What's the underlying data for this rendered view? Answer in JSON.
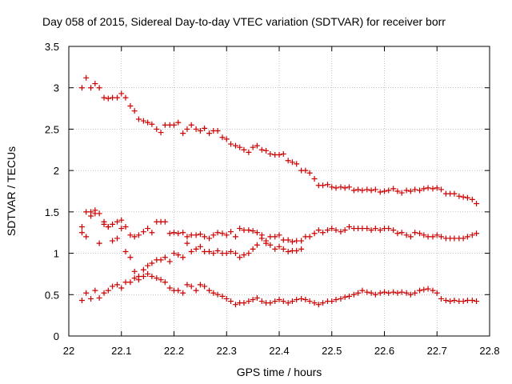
{
  "chart_data": {
    "type": "scatter",
    "title": "Day 058 of 2015, Sidereal Day-to-day VTEC variation (SDTVAR) for receiver borr",
    "xlabel": "GPS time / hours",
    "ylabel": "SDTVAR / TECUs",
    "xlim": [
      22,
      22.8
    ],
    "ylim": [
      0,
      3.5
    ],
    "x_ticks": [
      "22",
      "22.1",
      "22.2",
      "22.3",
      "22.4",
      "22.5",
      "22.6",
      "22.7",
      "22.8"
    ],
    "y_ticks": [
      "0",
      "0.5",
      "1",
      "1.5",
      "2",
      "2.5",
      "3",
      "3.5"
    ],
    "grid": true,
    "marker": "+",
    "series": [
      {
        "name": "top",
        "x": [
          22.025,
          22.033,
          22.042,
          22.05,
          22.058,
          22.067,
          22.075,
          22.083,
          22.092,
          22.1,
          22.108,
          22.117,
          22.125,
          22.133,
          22.142,
          22.15,
          22.158,
          22.167,
          22.175,
          22.183,
          22.192,
          22.2,
          22.208,
          22.217,
          22.225,
          22.233,
          22.242,
          22.25,
          22.258,
          22.267,
          22.275,
          22.283,
          22.292,
          22.3,
          22.308,
          22.317,
          22.325,
          22.333,
          22.342,
          22.35,
          22.358,
          22.367,
          22.375,
          22.383,
          22.392,
          22.4,
          22.408,
          22.417,
          22.425,
          22.433,
          22.442,
          22.45,
          22.458,
          22.467,
          22.475,
          22.483,
          22.492,
          22.5,
          22.508,
          22.517,
          22.525,
          22.533,
          22.542,
          22.55,
          22.558,
          22.567,
          22.575,
          22.583,
          22.592,
          22.6,
          22.608,
          22.617,
          22.625,
          22.633,
          22.642,
          22.65,
          22.658,
          22.667,
          22.675,
          22.683,
          22.692,
          22.7,
          22.708,
          22.717,
          22.725,
          22.733,
          22.742,
          22.75,
          22.758,
          22.767,
          22.775
        ],
        "y": [
          3.0,
          3.12,
          3.0,
          3.05,
          3.0,
          2.88,
          2.87,
          2.88,
          2.88,
          2.93,
          2.88,
          2.78,
          2.72,
          2.62,
          2.6,
          2.58,
          2.56,
          2.5,
          2.46,
          2.55,
          2.55,
          2.55,
          2.58,
          2.45,
          2.5,
          2.55,
          2.5,
          2.48,
          2.51,
          2.45,
          2.48,
          2.48,
          2.4,
          2.38,
          2.32,
          2.3,
          2.28,
          2.25,
          2.22,
          2.28,
          2.3,
          2.25,
          2.24,
          2.2,
          2.19,
          2.19,
          2.2,
          2.12,
          2.1,
          2.08,
          2.0,
          2.0,
          1.97,
          1.9,
          1.82,
          1.82,
          1.83,
          1.8,
          1.79,
          1.8,
          1.79,
          1.8,
          1.76,
          1.77,
          1.76,
          1.77,
          1.76,
          1.77,
          1.74,
          1.75,
          1.76,
          1.78,
          1.75,
          1.73,
          1.76,
          1.75,
          1.77,
          1.76,
          1.78,
          1.79,
          1.78,
          1.79,
          1.77,
          1.72,
          1.72,
          1.72,
          1.69,
          1.68,
          1.67,
          1.65,
          1.6
        ]
      },
      {
        "name": "upper-middle",
        "x": [
          22.025,
          22.033,
          22.042,
          22.05,
          22.058,
          22.067,
          22.075,
          22.083,
          22.092,
          22.1,
          22.108,
          22.117,
          22.125,
          22.133,
          22.142,
          22.15,
          22.158,
          22.167,
          22.175,
          22.183,
          22.192,
          22.2,
          22.208,
          22.217,
          22.225,
          22.233,
          22.242,
          22.25,
          22.258,
          22.267,
          22.275,
          22.283,
          22.292,
          22.3,
          22.308,
          22.317,
          22.325,
          22.333,
          22.342,
          22.35,
          22.358,
          22.367,
          22.375,
          22.383,
          22.392,
          22.4,
          22.408,
          22.417,
          22.425,
          22.433,
          22.442,
          22.45,
          22.458,
          22.467,
          22.475,
          22.483,
          22.492,
          22.5,
          22.508,
          22.517,
          22.525,
          22.533,
          22.542,
          22.55,
          22.558,
          22.567,
          22.575,
          22.583,
          22.592,
          22.6,
          22.608,
          22.617,
          22.625,
          22.633,
          22.642,
          22.65,
          22.658,
          22.667,
          22.675,
          22.683,
          22.692,
          22.7,
          22.708,
          22.717,
          22.725,
          22.733,
          22.742,
          22.75,
          22.758,
          22.767,
          22.775
        ],
        "y": [
          1.32,
          1.5,
          1.5,
          1.52,
          1.48,
          1.38,
          1.32,
          1.35,
          1.38,
          1.4,
          1.32,
          1.22,
          1.2,
          1.22,
          1.26,
          1.3,
          1.25,
          1.38,
          1.38,
          1.38,
          1.24,
          1.25,
          1.24,
          1.25,
          1.2,
          1.22,
          1.22,
          1.23,
          1.2,
          1.18,
          1.22,
          1.25,
          1.24,
          1.22,
          1.26,
          1.2,
          1.3,
          1.28,
          1.28,
          1.27,
          1.25,
          1.22,
          1.15,
          1.2,
          1.2,
          1.22,
          1.16,
          1.16,
          1.14,
          1.15,
          1.15,
          1.2,
          1.2,
          1.24,
          1.28,
          1.25,
          1.28,
          1.3,
          1.28,
          1.26,
          1.28,
          1.32,
          1.3,
          1.3,
          1.3,
          1.3,
          1.28,
          1.3,
          1.28,
          1.3,
          1.3,
          1.28,
          1.24,
          1.25,
          1.22,
          1.2,
          1.25,
          1.24,
          1.22,
          1.2,
          1.2,
          1.22,
          1.2,
          1.18,
          1.18,
          1.18,
          1.18,
          1.18,
          1.2,
          1.22,
          1.24
        ]
      },
      {
        "name": "lower-middle",
        "x": [
          22.025,
          22.033,
          22.042,
          22.05,
          22.058,
          22.067,
          22.075,
          22.083,
          22.092,
          22.1,
          22.108,
          22.117,
          22.125,
          22.133,
          22.142,
          22.15,
          22.158,
          22.167,
          22.175,
          22.183,
          22.192,
          22.2,
          22.208,
          22.217,
          22.225,
          22.233,
          22.242,
          22.25,
          22.258,
          22.267,
          22.275,
          22.283,
          22.292,
          22.3,
          22.308,
          22.317,
          22.325,
          22.333,
          22.342,
          22.35,
          22.358,
          22.367,
          22.375,
          22.383,
          22.392,
          22.4,
          22.408,
          22.417,
          22.425,
          22.433,
          22.442
        ],
        "y": [
          1.25,
          1.2,
          1.45,
          1.48,
          1.12,
          1.35,
          1.32,
          1.15,
          1.18,
          1.3,
          1.02,
          0.95,
          0.78,
          0.72,
          0.8,
          0.85,
          0.88,
          0.92,
          0.92,
          0.95,
          0.9,
          1.0,
          0.98,
          0.95,
          1.12,
          1.02,
          1.05,
          1.08,
          1.02,
          1.02,
          1.0,
          1.03,
          1.0,
          1.0,
          1.02,
          1.0,
          0.95,
          0.98,
          1.0,
          1.05,
          1.1,
          1.18,
          1.12,
          1.1,
          1.05,
          1.08,
          1.05,
          1.02,
          1.03,
          1.03,
          1.05
        ]
      },
      {
        "name": "bottom",
        "x": [
          22.025,
          22.033,
          22.042,
          22.05,
          22.058,
          22.067,
          22.075,
          22.083,
          22.092,
          22.1,
          22.108,
          22.117,
          22.125,
          22.133,
          22.142,
          22.15,
          22.158,
          22.167,
          22.175,
          22.183,
          22.192,
          22.2,
          22.208,
          22.217,
          22.225,
          22.233,
          22.242,
          22.25,
          22.258,
          22.267,
          22.275,
          22.283,
          22.292,
          22.3,
          22.308,
          22.317,
          22.325,
          22.333,
          22.342,
          22.35,
          22.358,
          22.367,
          22.375,
          22.383,
          22.392,
          22.4,
          22.408,
          22.417,
          22.425,
          22.433,
          22.442,
          22.45,
          22.458,
          22.467,
          22.475,
          22.483,
          22.492,
          22.5,
          22.508,
          22.517,
          22.525,
          22.533,
          22.542,
          22.55,
          22.558,
          22.567,
          22.575,
          22.583,
          22.592,
          22.6,
          22.608,
          22.617,
          22.625,
          22.633,
          22.642,
          22.65,
          22.658,
          22.667,
          22.675,
          22.683,
          22.692,
          22.7,
          22.708,
          22.717,
          22.725,
          22.733,
          22.742,
          22.75,
          22.758,
          22.767,
          22.775
        ],
        "y": [
          0.43,
          0.52,
          0.45,
          0.55,
          0.46,
          0.52,
          0.55,
          0.6,
          0.62,
          0.58,
          0.65,
          0.65,
          0.7,
          0.68,
          0.72,
          0.75,
          0.72,
          0.7,
          0.68,
          0.65,
          0.58,
          0.55,
          0.55,
          0.52,
          0.62,
          0.6,
          0.55,
          0.62,
          0.6,
          0.55,
          0.52,
          0.5,
          0.48,
          0.45,
          0.42,
          0.38,
          0.4,
          0.4,
          0.42,
          0.44,
          0.46,
          0.42,
          0.4,
          0.4,
          0.42,
          0.44,
          0.42,
          0.4,
          0.42,
          0.44,
          0.45,
          0.44,
          0.42,
          0.4,
          0.38,
          0.4,
          0.42,
          0.42,
          0.44,
          0.45,
          0.47,
          0.48,
          0.5,
          0.52,
          0.55,
          0.53,
          0.52,
          0.5,
          0.52,
          0.53,
          0.52,
          0.53,
          0.52,
          0.53,
          0.52,
          0.5,
          0.52,
          0.55,
          0.56,
          0.57,
          0.55,
          0.52,
          0.45,
          0.43,
          0.42,
          0.43,
          0.42,
          0.42,
          0.43,
          0.43,
          0.42
        ]
      }
    ],
    "colors": {
      "marker": "#cc0000",
      "grid": "#a0a0a0",
      "axis": "#000000"
    }
  }
}
